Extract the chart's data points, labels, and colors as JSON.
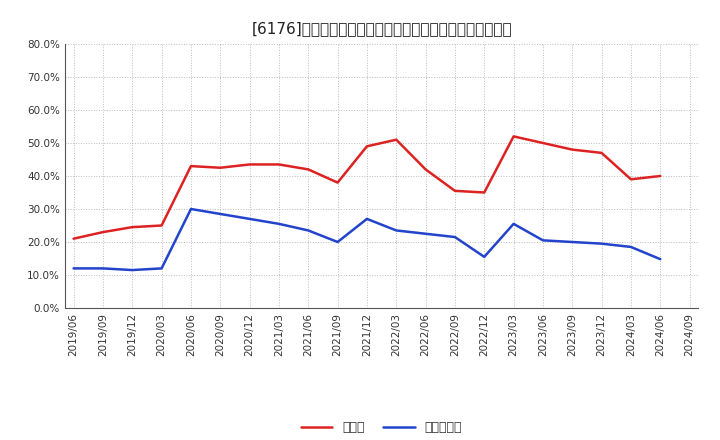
{
  "title": "[6176]　現須金、有利子負債の総資産に対する比率の推移",
  "x_labels": [
    "2019/06",
    "2019/09",
    "2019/12",
    "2020/03",
    "2020/06",
    "2020/09",
    "2020/12",
    "2021/03",
    "2021/06",
    "2021/09",
    "2021/12",
    "2022/03",
    "2022/06",
    "2022/09",
    "2022/12",
    "2023/03",
    "2023/06",
    "2023/09",
    "2023/12",
    "2024/03",
    "2024/06",
    "2024/09"
  ],
  "cash": [
    0.21,
    0.23,
    0.245,
    0.25,
    0.43,
    0.425,
    0.435,
    0.435,
    0.42,
    0.38,
    0.49,
    0.51,
    0.42,
    0.355,
    0.35,
    0.52,
    0.5,
    0.48,
    0.47,
    0.39,
    0.4,
    null
  ],
  "debt": [
    0.12,
    0.12,
    0.115,
    0.12,
    0.3,
    0.285,
    0.27,
    0.255,
    0.235,
    0.2,
    0.27,
    0.235,
    0.225,
    0.215,
    0.155,
    0.255,
    0.205,
    0.2,
    0.195,
    0.185,
    0.148,
    null
  ],
  "cash_color": "#dd2222",
  "debt_color": "#2244cc",
  "bg_color": "#ffffff",
  "plot_bg_color": "#ffffff",
  "grid_color": "#aaaaaa",
  "ylim": [
    0.0,
    0.8
  ],
  "yticks": [
    0.0,
    0.1,
    0.2,
    0.3,
    0.4,
    0.5,
    0.6,
    0.7,
    0.8
  ],
  "legend_cash": "現須金",
  "legend_debt": "有利子負債",
  "title_fontsize": 11,
  "tick_fontsize": 7.5,
  "legend_fontsize": 9
}
